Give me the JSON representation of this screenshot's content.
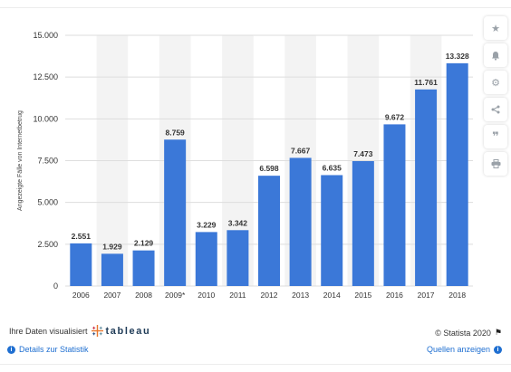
{
  "chart_data": {
    "type": "bar",
    "categories": [
      "2006",
      "2007",
      "2008",
      "2009*",
      "2010",
      "2011",
      "2012",
      "2013",
      "2014",
      "2015",
      "2016",
      "2017",
      "2018"
    ],
    "values": [
      2551,
      1929,
      2129,
      8759,
      3229,
      3342,
      6598,
      7667,
      6635,
      7473,
      9672,
      11761,
      13328
    ],
    "value_labels": [
      "2.551",
      "1.929",
      "2.129",
      "8.759",
      "3.229",
      "3.342",
      "6.598",
      "7.667",
      "6.635",
      "7.473",
      "9.672",
      "11.761",
      "13.328"
    ],
    "ylabel": "Angezeigte Fälle von Internetbetrug",
    "ylim": [
      0,
      15000
    ],
    "yticks": [
      0,
      2500,
      5000,
      7500,
      10000,
      12500,
      15000
    ],
    "ytick_labels": [
      "0",
      "2.500",
      "5.000",
      "7.500",
      "10.000",
      "12.500",
      "15.000"
    ],
    "bar_color": "#3b78d8",
    "grid": true,
    "alternating_column_shading": true
  },
  "toolbar": {
    "icons": [
      "star-icon",
      "bell-icon",
      "gear-icon",
      "share-icon",
      "quote-icon",
      "print-icon"
    ]
  },
  "footer": {
    "visualized_text": "Ihre Daten visualisiert",
    "tableau_word": "tableau",
    "details_link": "Details zur Statistik",
    "copyright": "© Statista 2020",
    "sources_link": "Quellen anzeigen"
  }
}
